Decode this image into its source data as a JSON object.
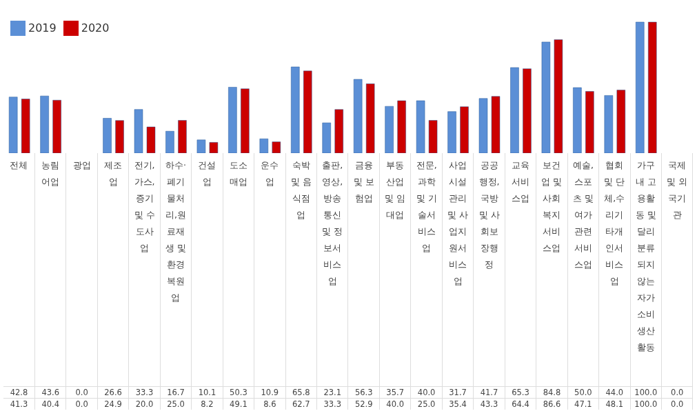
{
  "chart_data": {
    "type": "bar",
    "categories": [
      "전체",
      "농림어업",
      "광업",
      "제조업",
      "전기,가스,증기 및 수도사업",
      "하수·폐기물처리,원료재생 및 환경복원업",
      "건설업",
      "도소매업",
      "운수업",
      "숙박 및 음식점업",
      "출판,영상,방송통신 및 정보서비스업",
      "금융 및 보험업",
      "부동산업 및 임대업",
      "전문,과학 및 기술서비스업",
      "사업시설관리 및 사업지원서비스업",
      "공공행정,국방 및 사회보장행정",
      "교육서비스업",
      "보건업 및 사회복지서비스업",
      "예술,스포츠 및 여가관련서비스업",
      "협회 및 단체,수리기타개인서비스업",
      "가구내 고용활동 및 달리 분류되지 않는 자가소비생산활동",
      "국제 및 외국기관"
    ],
    "series": [
      {
        "name": "2019",
        "color": "#5b8fd6",
        "values": [
          42.8,
          43.6,
          0.0,
          26.6,
          33.3,
          16.7,
          10.1,
          50.3,
          10.9,
          65.8,
          23.1,
          56.3,
          35.7,
          40.0,
          31.7,
          41.7,
          65.3,
          84.8,
          50.0,
          44.0,
          100.0,
          0.0
        ],
        "value_labels": [
          "42.8",
          "43.6",
          "0.0",
          "26.6",
          "33.3",
          "16.7",
          "10.1",
          "50.3",
          "10.9",
          "65.8",
          "23.1",
          "56.3",
          "35.7",
          "40.0",
          "31.7",
          "41.7",
          "65.3",
          "84.8",
          "50.0",
          "44.0",
          "100.0",
          "0.0"
        ]
      },
      {
        "name": "2020",
        "color": "#cc0000",
        "values": [
          41.3,
          40.4,
          0.0,
          24.9,
          20.0,
          25.0,
          8.2,
          49.1,
          8.6,
          62.7,
          33.3,
          52.9,
          40.0,
          25.0,
          35.4,
          43.3,
          64.4,
          86.6,
          47.1,
          48.1,
          100.0,
          0.0
        ],
        "value_labels": [
          "41.3",
          "40.4",
          "0.0",
          "24.9",
          "20.0",
          "25.0",
          "8.2",
          "49.1",
          "8.6",
          "62.7",
          "33.3",
          "52.9",
          "40.0",
          "25.0",
          "35.4",
          "43.3",
          "64.4",
          "86.6",
          "47.1",
          "48.1",
          "100.0",
          "0.0"
        ]
      }
    ],
    "legend": "top left"
  }
}
